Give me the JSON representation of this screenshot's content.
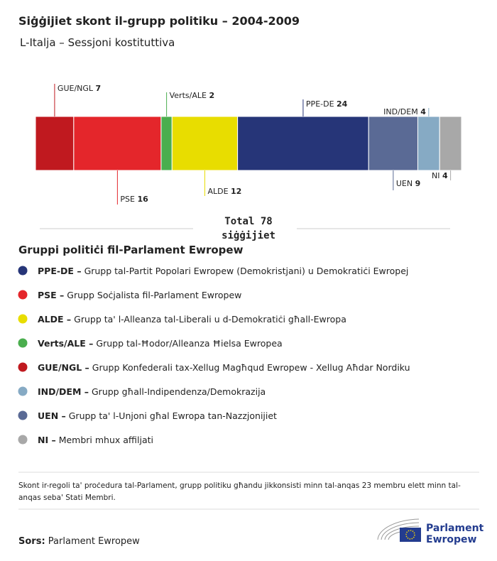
{
  "chart_data": {
    "type": "stacked_bar",
    "title": "Siġġijiet skont il-grupp politiku – 2004-2009",
    "subtitle": "L-Italja – Sessjoni kostituttiva",
    "categories": [
      "GUE/NGL",
      "PSE",
      "Verts/ALE",
      "ALDE",
      "PPE-DE",
      "UEN",
      "IND/DEM",
      "NI"
    ],
    "values": [
      7,
      16,
      2,
      12,
      24,
      9,
      4,
      4
    ],
    "colors": [
      "#c0191f",
      "#e4262b",
      "#4aae4e",
      "#e8dd00",
      "#263578",
      "#5a6a95",
      "#86aac4",
      "#a8a8a8"
    ],
    "total_label": "Total",
    "total": 78,
    "total_unit": "siġġijiet",
    "legend_title": "Gruppi politiċi fil-Parlament Ewropew",
    "legend": [
      {
        "abbr": "PPE-DE –",
        "text": "Grupp tal-Partit Popolari Ewropew (Demokristjani) u Demokratiċi Ewropej",
        "color": "#263578"
      },
      {
        "abbr": "PSE –",
        "text": "Grupp Soċjalista fil-Parlament Ewropew",
        "color": "#e4262b"
      },
      {
        "abbr": "ALDE –",
        "text": "Grupp ta' l-Alleanza tal-Liberali u d-Demokratiċi għall-Ewropa",
        "color": "#e8dd00"
      },
      {
        "abbr": "Verts/ALE –",
        "text": "Grupp tal-Ħodor/Alleanza Ħielsa Ewropea",
        "color": "#4aae4e"
      },
      {
        "abbr": "GUE/NGL –",
        "text": "Grupp Konfederali tax-Xellug Magħqud Ewropew - Xellug Aħdar Nordiku",
        "color": "#c0191f"
      },
      {
        "abbr": "IND/DEM –",
        "text": "Grupp għall-Indipendenza/Demokrazija",
        "color": "#86aac4"
      },
      {
        "abbr": "UEN –",
        "text": "Grupp ta' l-Unjoni għal Ewropa tan-Nazzjonijiet",
        "color": "#5a6a95"
      },
      {
        "abbr": "NI –",
        "text": "Membri mhux affiljati",
        "color": "#a8a8a8"
      }
    ]
  },
  "footnote": [
    "Skont ir-regoli ta' proċedura tal-Parlament, grupp politiku għandu jikkonsisti minn tal-anqas 23 membru elett minn tal-",
    "anqas seba' Stati Membri."
  ],
  "source_label": "Sors:",
  "source": "Parlament Ewropew",
  "logo": [
    "Parlament",
    "Ewropew"
  ]
}
